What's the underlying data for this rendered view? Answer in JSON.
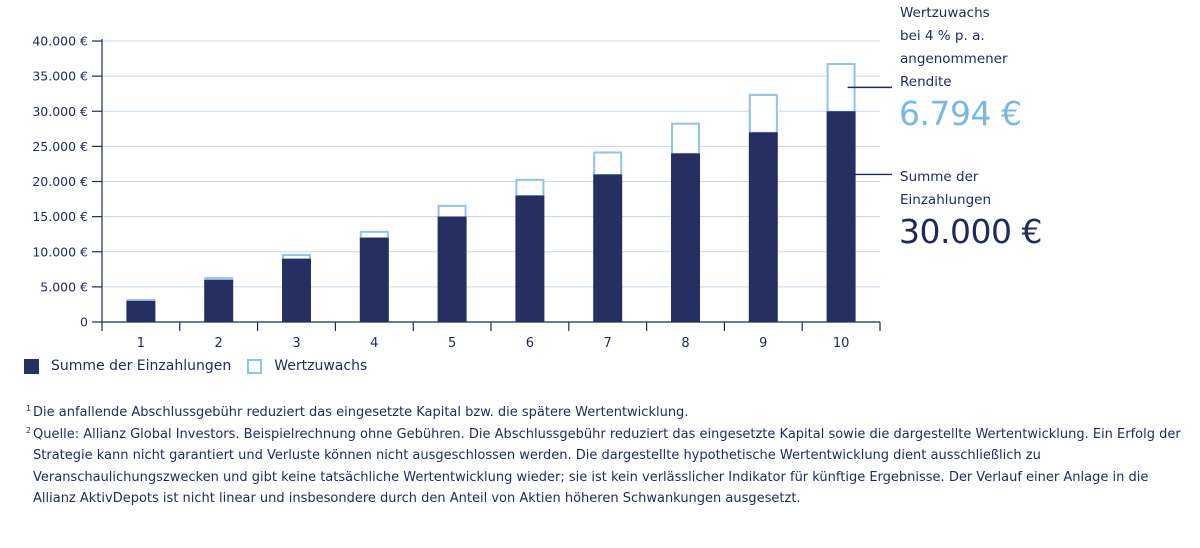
{
  "chart_data": {
    "type": "bar",
    "categories": [
      "1",
      "2",
      "3",
      "4",
      "5",
      "6",
      "7",
      "8",
      "9",
      "10"
    ],
    "series": [
      {
        "name": "Summe der Einzahlungen",
        "values": [
          3000,
          6000,
          9000,
          12000,
          15000,
          18000,
          21000,
          24000,
          27000,
          30000
        ]
      },
      {
        "name": "Wertzuwachs",
        "values": [
          200,
          300,
          600,
          900,
          1600,
          2300,
          3200,
          4300,
          5400,
          6794
        ]
      }
    ],
    "stacked": true,
    "ylim": [
      0,
      40000
    ],
    "yticks": [
      0,
      5000,
      10000,
      15000,
      20000,
      25000,
      30000,
      35000,
      40000
    ],
    "ytick_labels": [
      "0",
      "5.000 €",
      "10.000 €",
      "15.000 €",
      "20.000 €",
      "25.000 €",
      "30.000 €",
      "35.000 €",
      "40.000 €"
    ],
    "grid": true,
    "legend_position": "bottom-left",
    "colors": {
      "deposits": "#262f62",
      "growth_border": "#8ec4ea",
      "growth_text": "#7ab8e3",
      "grid": "#c5d9ea",
      "axis": "#1f2a5c"
    }
  },
  "annotations": {
    "growth_label_lines": [
      "Wertzuwachs",
      "bei 4 % p. a.",
      "angenommener",
      "Rendite"
    ],
    "growth_value": "6.794 €",
    "sum_label_lines": [
      "Summe der",
      "Einzahlungen"
    ],
    "sum_value": "30.000 €"
  },
  "legend": {
    "deposits": "Summe der Einzahlungen",
    "growth": "Wertzuwachs"
  },
  "footnotes": [
    {
      "mark": "1",
      "text": "Die anfallende Abschlussgebühr reduziert das eingesetzte Kapital bzw. die spätere Wertentwicklung."
    },
    {
      "mark": "2",
      "text": "Quelle: Allianz Global Investors. Beispielrechnung ohne Gebühren. Die Abschlussgebühr reduziert das eingesetzte Kapital sowie die dargestellte Wertentwicklung. Ein Erfolg der Strategie kann nicht garantiert und Verluste können nicht ausgeschlossen werden. Die dargestellte hypothetische Wertentwicklung dient ausschließlich zu Veranschaulichungszwecken und gibt keine tatsächliche Wertentwicklung wieder; sie ist kein verlässlicher Indikator für künftige Ergebnisse. Der Verlauf einer Anlage in die Allianz AktivDepots ist nicht linear und insbesondere durch den Anteil von Aktien höheren Schwankungen ausgesetzt."
    }
  ]
}
